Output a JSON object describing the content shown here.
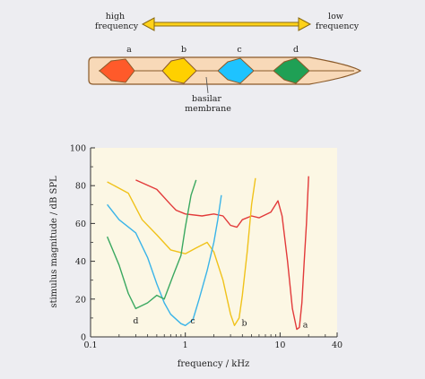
{
  "colors": {
    "background": "#ededf1",
    "plot_area": "#fcf7e4",
    "membrane_fill": "#f8d9b8",
    "membrane_stroke": "#8a5a2a",
    "arrow": "#ffd21a",
    "a": "#ff5a2a",
    "b": "#ffd000",
    "c": "#1ec3ff",
    "d": "#1fa055",
    "curve_a": "#e23a3a",
    "curve_b": "#f0c21a",
    "curve_c": "#3ab4e8",
    "curve_d": "#3aa860"
  },
  "diagram": {
    "high_frequency": [
      "high",
      "frequency"
    ],
    "low_frequency": [
      "low",
      "frequency"
    ],
    "positions": [
      "a",
      "b",
      "c",
      "d"
    ],
    "membrane_label": [
      "basilar",
      "membrane"
    ]
  },
  "chart_data": {
    "type": "line",
    "xlabel": "frequency / kHz",
    "ylabel": "stimulus magnitude / dB SPL",
    "xscale": "log",
    "xlim": [
      0.1,
      40
    ],
    "ylim": [
      0,
      100
    ],
    "xticks": [
      0.1,
      1,
      10,
      40
    ],
    "xtick_labels": [
      "0.1",
      "1",
      "10",
      "40"
    ],
    "yticks": [
      0,
      20,
      40,
      60,
      80,
      100
    ],
    "ytick_labels": [
      "0",
      "20",
      "40",
      "60",
      "80",
      "100"
    ],
    "grid": false,
    "series": [
      {
        "name": "a",
        "color_key": "curve_a",
        "label_at": [
          18.5,
          5
        ],
        "points": [
          [
            0.3,
            83
          ],
          [
            0.5,
            78
          ],
          [
            0.7,
            70
          ],
          [
            0.8,
            67
          ],
          [
            1.0,
            65
          ],
          [
            1.5,
            64
          ],
          [
            2.0,
            65
          ],
          [
            2.5,
            64
          ],
          [
            3.0,
            59
          ],
          [
            3.5,
            58
          ],
          [
            4.0,
            62
          ],
          [
            5.0,
            64
          ],
          [
            6.0,
            63
          ],
          [
            8.0,
            66
          ],
          [
            9.5,
            72
          ],
          [
            10.5,
            64
          ],
          [
            12.0,
            40
          ],
          [
            13.5,
            15
          ],
          [
            15.0,
            4
          ],
          [
            16.0,
            5
          ],
          [
            17.0,
            18
          ],
          [
            18.0,
            40
          ],
          [
            19.0,
            60
          ],
          [
            20.0,
            85
          ]
        ]
      },
      {
        "name": "b",
        "color_key": "curve_b",
        "label_at": [
          4.2,
          6
        ],
        "points": [
          [
            0.15,
            82
          ],
          [
            0.25,
            76
          ],
          [
            0.35,
            62
          ],
          [
            0.5,
            54
          ],
          [
            0.7,
            46
          ],
          [
            1.0,
            44
          ],
          [
            1.3,
            47
          ],
          [
            1.7,
            50
          ],
          [
            2.0,
            45
          ],
          [
            2.5,
            30
          ],
          [
            3.0,
            12
          ],
          [
            3.3,
            6
          ],
          [
            3.7,
            10
          ],
          [
            4.0,
            22
          ],
          [
            4.5,
            45
          ],
          [
            5.0,
            70
          ],
          [
            5.5,
            84
          ]
        ]
      },
      {
        "name": "c",
        "color_key": "curve_c",
        "label_at": [
          1.2,
          7
        ],
        "points": [
          [
            0.15,
            70
          ],
          [
            0.2,
            62
          ],
          [
            0.3,
            55
          ],
          [
            0.4,
            42
          ],
          [
            0.5,
            28
          ],
          [
            0.6,
            18
          ],
          [
            0.7,
            12
          ],
          [
            0.9,
            7
          ],
          [
            1.0,
            6
          ],
          [
            1.2,
            9
          ],
          [
            1.4,
            20
          ],
          [
            1.7,
            35
          ],
          [
            2.0,
            50
          ],
          [
            2.2,
            62
          ],
          [
            2.4,
            75
          ]
        ]
      },
      {
        "name": "d",
        "color_key": "curve_d",
        "label_at": [
          0.3,
          7
        ],
        "points": [
          [
            0.15,
            53
          ],
          [
            0.2,
            38
          ],
          [
            0.25,
            23
          ],
          [
            0.3,
            15
          ],
          [
            0.4,
            18
          ],
          [
            0.5,
            22
          ],
          [
            0.6,
            20
          ],
          [
            0.75,
            33
          ],
          [
            0.9,
            43
          ],
          [
            1.0,
            58
          ],
          [
            1.15,
            75
          ],
          [
            1.3,
            83
          ]
        ]
      }
    ]
  }
}
